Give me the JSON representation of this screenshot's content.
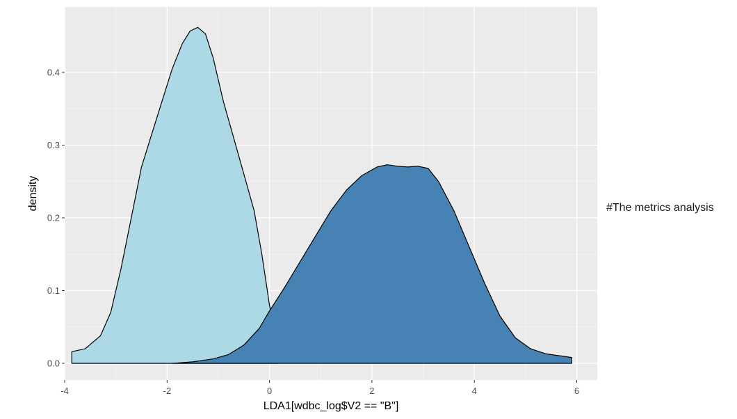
{
  "annotation": "#The metrics analysis",
  "colors": {
    "panel": "#EBEBEB",
    "grid_major": "#FFFFFF",
    "grid_minor": "#F5F5F5",
    "tick_text": "#4D4D4D"
  },
  "chart_data": {
    "type": "area",
    "xlabel": "LDA1[wdbc_log$V2 == \"B\"]",
    "ylabel": "density",
    "xlim": [
      -4.0,
      6.4
    ],
    "ylim": [
      -0.023,
      0.49
    ],
    "x_ticks": [
      -4,
      -2,
      0,
      2,
      4,
      6
    ],
    "x_tick_labels": [
      "-4",
      "-2",
      "0",
      "2",
      "4",
      "6"
    ],
    "y_ticks": [
      0.0,
      0.1,
      0.2,
      0.3,
      0.4
    ],
    "y_tick_labels": [
      "0.0",
      "0.1",
      "0.2",
      "0.3",
      "0.4"
    ],
    "grid": true,
    "series": [
      {
        "color": "#ADD8E6",
        "x": [
          -3.86,
          -3.6,
          -3.3,
          -3.1,
          -2.9,
          -2.7,
          -2.5,
          -2.3,
          -2.1,
          -1.9,
          -1.7,
          -1.55,
          -1.4,
          -1.25,
          -1.1,
          -0.9,
          -0.7,
          -0.5,
          -0.3,
          -0.15,
          0.0,
          0.1,
          0.15
        ],
        "y": [
          0.016,
          0.02,
          0.038,
          0.07,
          0.13,
          0.2,
          0.27,
          0.315,
          0.36,
          0.405,
          0.44,
          0.457,
          0.462,
          0.453,
          0.42,
          0.36,
          0.31,
          0.26,
          0.21,
          0.15,
          0.08,
          0.045,
          0.03
        ]
      },
      {
        "color": "#4682B4",
        "x": [
          -1.9,
          -1.5,
          -1.1,
          -0.8,
          -0.5,
          -0.2,
          0.0,
          0.3,
          0.6,
          0.9,
          1.2,
          1.5,
          1.8,
          2.1,
          2.3,
          2.5,
          2.7,
          2.9,
          3.1,
          3.3,
          3.6,
          3.9,
          4.2,
          4.5,
          4.8,
          5.1,
          5.4,
          5.7,
          5.9
        ],
        "y": [
          0.0,
          0.002,
          0.006,
          0.012,
          0.025,
          0.048,
          0.072,
          0.105,
          0.14,
          0.175,
          0.21,
          0.238,
          0.258,
          0.27,
          0.273,
          0.271,
          0.27,
          0.271,
          0.268,
          0.25,
          0.21,
          0.16,
          0.11,
          0.065,
          0.035,
          0.02,
          0.013,
          0.01,
          0.008
        ]
      }
    ]
  }
}
